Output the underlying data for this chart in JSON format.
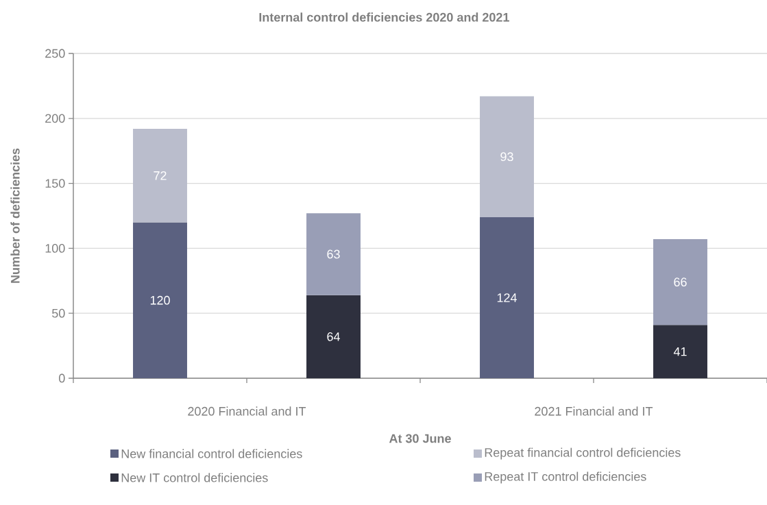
{
  "chart_data": {
    "type": "bar",
    "title": "Internal control deficiencies 2020 and 2021",
    "xlabel": "At 30 June",
    "ylabel": "Number of deficiencies",
    "categories": [
      "2020 Financial and IT",
      null,
      "2021 Financial and IT",
      null
    ],
    "series": [
      {
        "name": "New financial control deficiencies",
        "color": "#5b6180",
        "values": [
          120,
          null,
          124,
          null
        ]
      },
      {
        "name": "Repeat financial control deficiencies",
        "color": "#babdcc",
        "values": [
          72,
          null,
          93,
          null
        ]
      },
      {
        "name": "New IT control deficiencies",
        "color": "#2e303e",
        "values": [
          null,
          64,
          null,
          41
        ]
      },
      {
        "name": "Repeat IT control deficiencies",
        "color": "#999eb6",
        "values": [
          null,
          63,
          null,
          66
        ]
      }
    ],
    "stacked": true,
    "data_labels": true,
    "grid": "y",
    "legend": "bottom",
    "ylim": [
      0,
      250
    ],
    "yticks": [
      0,
      50,
      100,
      150,
      200,
      250
    ]
  }
}
